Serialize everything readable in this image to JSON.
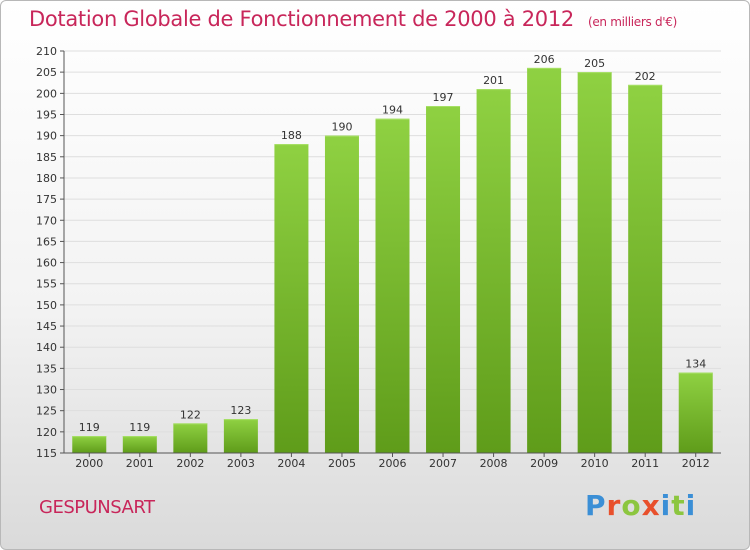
{
  "header": {
    "title": "Dotation Globale de Fonctionnement de 2000 à 2012",
    "unit": "(en milliers d'€)"
  },
  "footer": {
    "place": "GESPUNSART",
    "logo_letters": [
      "P",
      "r",
      "o",
      "x",
      "i",
      "t",
      "i"
    ],
    "logo_colors": [
      "#3b8fd6",
      "#e8502c",
      "#8cc63f",
      "#e8502c",
      "#3b8fd6",
      "#8cc63f",
      "#3b8fd6"
    ]
  },
  "chart_data": {
    "type": "bar",
    "title": "Dotation Globale de Fonctionnement de 2000 à 2012",
    "xlabel": "",
    "ylabel": "",
    "categories": [
      "2000",
      "2001",
      "2002",
      "2003",
      "2004",
      "2005",
      "2006",
      "2007",
      "2008",
      "2009",
      "2010",
      "2011",
      "2012"
    ],
    "values": [
      119,
      119,
      122,
      123,
      188,
      190,
      194,
      197,
      201,
      206,
      205,
      202,
      134
    ],
    "ylim": [
      115,
      210
    ],
    "ytick_step": 5,
    "grid": true,
    "legend": "none",
    "bar_color": "#7fbf2e",
    "bar_color_dark": "#5e9a18"
  }
}
